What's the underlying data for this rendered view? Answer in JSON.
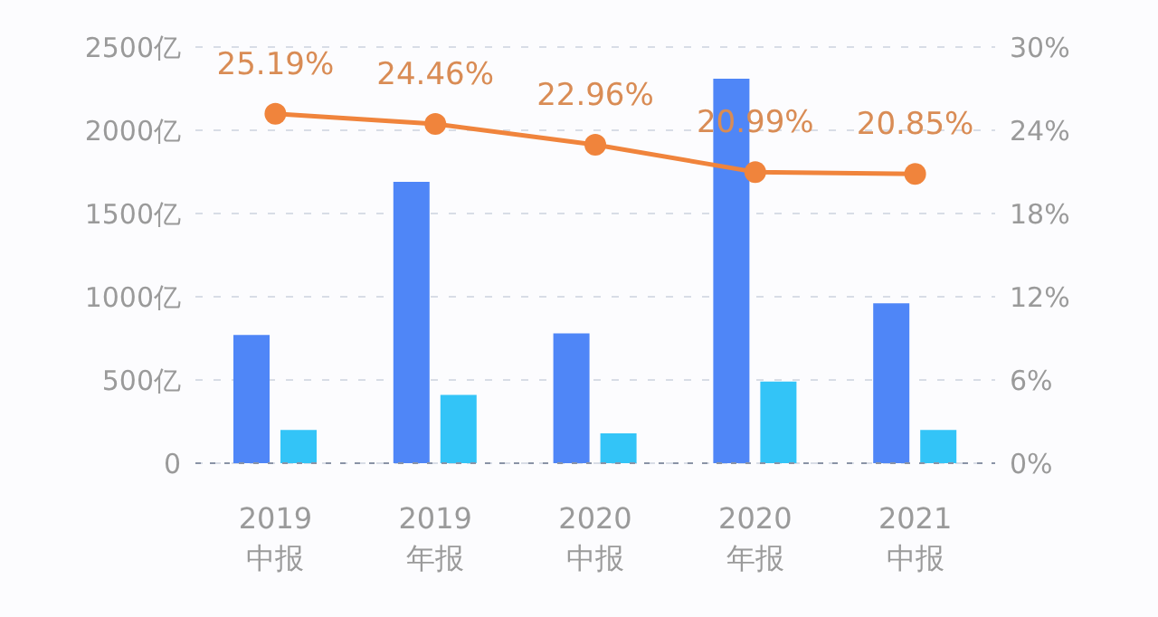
{
  "chart_data": {
    "type": "bar",
    "categories": [
      "2019\n中报",
      "2019\n年报",
      "2020\n中报",
      "2020\n年报",
      "2021\n中报"
    ],
    "series": [
      {
        "color": "#4f86f7",
        "values": [
          770,
          1690,
          780,
          2310,
          960
        ]
      },
      {
        "color": "#33c4f7",
        "values": [
          200,
          410,
          180,
          490,
          200
        ]
      },
      {
        "type": "line",
        "axis": "y2",
        "color": "#f0843c",
        "values": [
          25.19,
          24.46,
          22.96,
          20.99,
          20.85
        ],
        "value_labels": [
          "25.19%",
          "24.46%",
          "22.96%",
          "20.99%",
          "20.85%"
        ]
      }
    ],
    "ylim": [
      0,
      2500
    ],
    "yticks": [
      0,
      {
        "value": 500,
        "label": "500亿"
      },
      {
        "value": 1000,
        "label": "1000亿"
      },
      {
        "value": 1500,
        "label": "1500亿"
      },
      {
        "value": 2000,
        "label": "2000亿"
      },
      {
        "value": 2500,
        "label": "2500亿"
      }
    ],
    "y2lim": [
      0,
      30
    ],
    "y2ticks": [
      {
        "value": 0,
        "label": "0%"
      },
      {
        "value": 6,
        "label": "6%"
      },
      {
        "value": 12,
        "label": "12%"
      },
      {
        "value": 18,
        "label": "18%"
      },
      {
        "value": 24,
        "label": "24%"
      },
      {
        "value": 30,
        "label": "30%"
      }
    ],
    "grid": "y",
    "marker": "circle"
  }
}
